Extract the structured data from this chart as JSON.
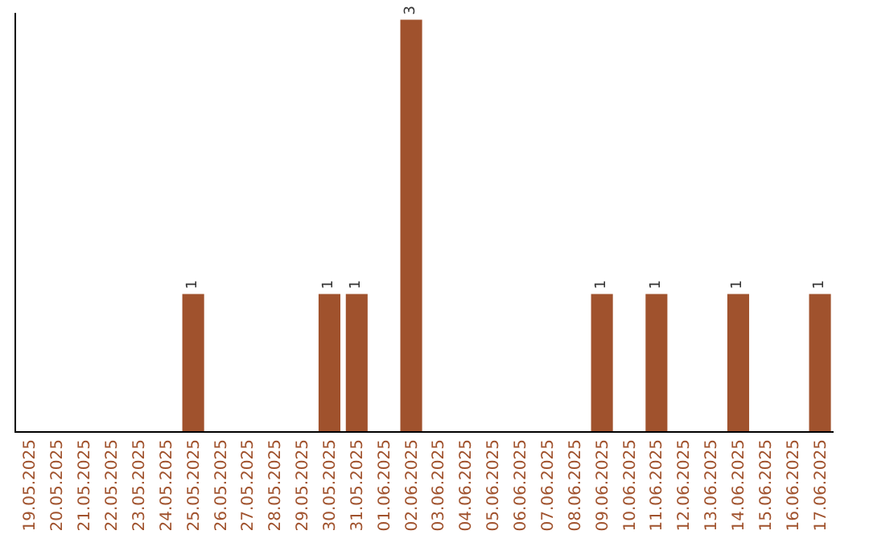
{
  "chart_data": {
    "type": "bar",
    "categories": [
      "19.05.2025",
      "20.05.2025",
      "21.05.2025",
      "22.05.2025",
      "23.05.2025",
      "24.05.2025",
      "25.05.2025",
      "26.05.2025",
      "27.05.2025",
      "28.05.2025",
      "29.05.2025",
      "30.05.2025",
      "31.05.2025",
      "01.06.2025",
      "02.06.2025",
      "03.06.2025",
      "04.06.2025",
      "05.06.2025",
      "06.06.2025",
      "07.06.2025",
      "08.06.2025",
      "09.06.2025",
      "10.06.2025",
      "11.06.2025",
      "12.06.2025",
      "13.06.2025",
      "14.06.2025",
      "15.06.2025",
      "16.06.2025",
      "17.06.2025"
    ],
    "values": [
      0,
      0,
      0,
      0,
      0,
      0,
      1,
      0,
      0,
      0,
      0,
      1,
      1,
      0,
      3,
      0,
      0,
      0,
      0,
      0,
      0,
      1,
      0,
      1,
      0,
      0,
      1,
      0,
      0,
      1
    ],
    "value_labels": [
      null,
      null,
      null,
      null,
      null,
      null,
      "1",
      null,
      null,
      null,
      null,
      "1",
      "1",
      null,
      "3",
      null,
      null,
      null,
      null,
      null,
      null,
      "1",
      null,
      "1",
      null,
      null,
      "1",
      null,
      null,
      "1"
    ],
    "color": "#a0522d",
    "ylim": [
      0,
      3.05
    ],
    "legend": false,
    "tick_labels": "x"
  }
}
